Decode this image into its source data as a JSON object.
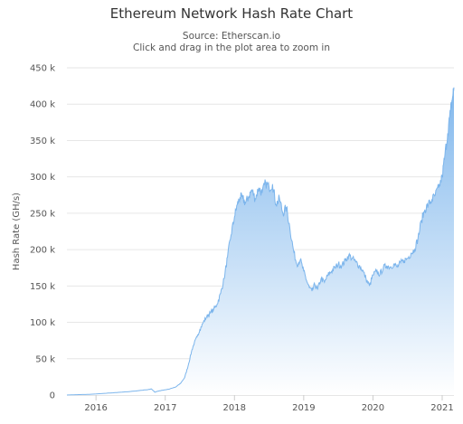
{
  "chart_data": {
    "type": "area",
    "title": "Ethereum Network Hash Rate Chart",
    "subtitle": [
      "Source: Etherscan.io",
      "Click and drag in the plot area to zoom in"
    ],
    "xlabel": "",
    "ylabel": "Hash Rate (GH/s)",
    "xlim": [
      2015.58,
      2021.17
    ],
    "ylim": [
      0,
      450000
    ],
    "x_tick_labels": [
      "2016",
      "2017",
      "2018",
      "2019",
      "2020",
      "2021"
    ],
    "x_ticks": [
      2016,
      2017,
      2018,
      2019,
      2020,
      2021
    ],
    "y_tick_labels": [
      "0",
      "50 k",
      "100 k",
      "150 k",
      "200 k",
      "250 k",
      "300 k",
      "350 k",
      "400 k",
      "450 k"
    ],
    "y_ticks": [
      0,
      50000,
      100000,
      150000,
      200000,
      250000,
      300000,
      350000,
      400000,
      450000
    ],
    "grid": true,
    "legend": "none",
    "colors": {
      "line": "#7cb5ec",
      "fill_top": "#7cb5ec",
      "fill_bottom": "#ffffff"
    },
    "series": [
      {
        "x": [
          2015.58,
          2015.7,
          2015.85,
          2016.0,
          2016.15,
          2016.3,
          2016.45,
          2016.6,
          2016.75,
          2016.8,
          2016.85,
          2016.9,
          2016.95,
          2017.05,
          2017.15,
          2017.22,
          2017.28,
          2017.33,
          2017.38,
          2017.42,
          2017.46,
          2017.5,
          2017.55,
          2017.6,
          2017.65,
          2017.7,
          2017.75,
          2017.8,
          2017.85,
          2017.9,
          2017.95,
          2018.0,
          2018.04,
          2018.08,
          2018.12,
          2018.16,
          2018.2,
          2018.25,
          2018.3,
          2018.35,
          2018.4,
          2018.45,
          2018.5,
          2018.55,
          2018.6,
          2018.65,
          2018.7,
          2018.75,
          2018.8,
          2018.85,
          2018.9,
          2018.95,
          2019.0,
          2019.04,
          2019.08,
          2019.12,
          2019.16,
          2019.2,
          2019.25,
          2019.3,
          2019.35,
          2019.4,
          2019.45,
          2019.5,
          2019.55,
          2019.6,
          2019.65,
          2019.7,
          2019.75,
          2019.8,
          2019.85,
          2019.9,
          2019.95,
          2020.0,
          2020.05,
          2020.1,
          2020.15,
          2020.2,
          2020.25,
          2020.3,
          2020.35,
          2020.4,
          2020.45,
          2020.5,
          2020.55,
          2020.6,
          2020.65,
          2020.7,
          2020.75,
          2020.8,
          2020.85,
          2020.9,
          2020.95,
          2021.0,
          2021.04,
          2021.08,
          2021.12,
          2021.15,
          2021.17
        ],
        "y": [
          0,
          500,
          800,
          1500,
          2500,
          3500,
          4500,
          6000,
          7500,
          8500,
          4000,
          5500,
          6500,
          8000,
          11000,
          16000,
          24000,
          40000,
          60000,
          72000,
          80000,
          90000,
          100000,
          108000,
          113000,
          118000,
          125000,
          140000,
          160000,
          190000,
          220000,
          245000,
          262000,
          272000,
          270000,
          264000,
          272000,
          282000,
          270000,
          285000,
          278000,
          292000,
          285000,
          290000,
          262000,
          270000,
          250000,
          258000,
          230000,
          200000,
          180000,
          186000,
          170000,
          158000,
          148000,
          143000,
          152000,
          145000,
          160000,
          155000,
          165000,
          170000,
          175000,
          180000,
          178000,
          185000,
          192000,
          188000,
          183000,
          178000,
          172000,
          160000,
          150000,
          165000,
          170000,
          166000,
          175000,
          178000,
          176000,
          180000,
          176000,
          182000,
          185000,
          188000,
          195000,
          200000,
          215000,
          240000,
          255000,
          262000,
          268000,
          275000,
          285000,
          300000,
          330000,
          360000,
          390000,
          410000,
          423000
        ]
      }
    ]
  }
}
